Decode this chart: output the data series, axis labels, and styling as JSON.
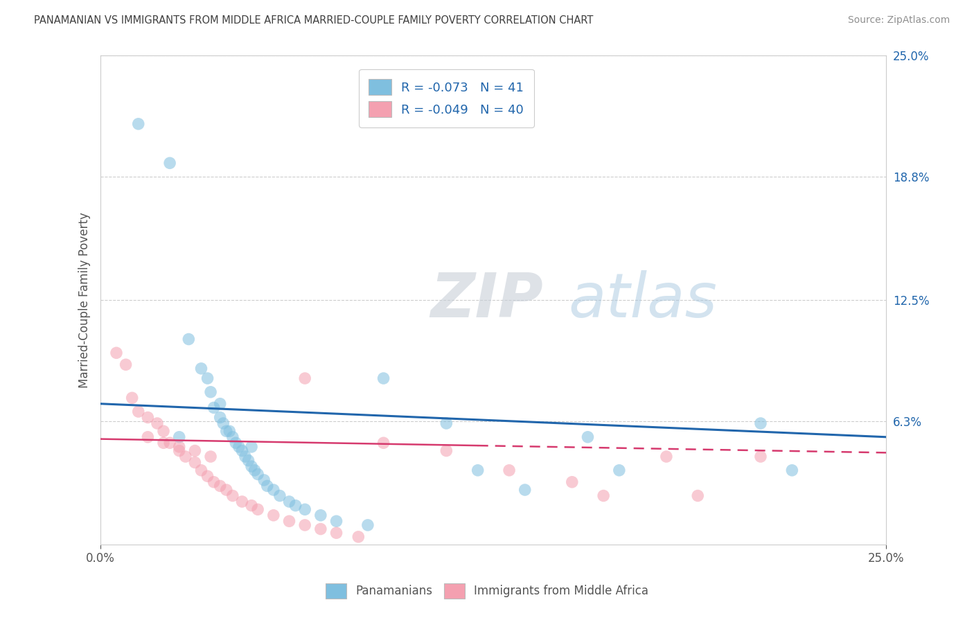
{
  "title": "PANAMANIAN VS IMMIGRANTS FROM MIDDLE AFRICA MARRIED-COUPLE FAMILY POVERTY CORRELATION CHART",
  "source": "Source: ZipAtlas.com",
  "ylabel": "Married-Couple Family Poverty",
  "xlim": [
    0.0,
    0.25
  ],
  "ylim": [
    0.0,
    0.25
  ],
  "xtick_positions": [
    0.0,
    0.25
  ],
  "xtick_labels": [
    "0.0%",
    "25.0%"
  ],
  "ytick_values_right": [
    0.063,
    0.125,
    0.188,
    0.25
  ],
  "ytick_labels_right": [
    "6.3%",
    "12.5%",
    "18.8%",
    "25.0%"
  ],
  "blue_R": -0.073,
  "blue_N": 41,
  "pink_R": -0.049,
  "pink_N": 40,
  "blue_color": "#7fbfdf",
  "pink_color": "#f4a0b0",
  "blue_line_color": "#2166ac",
  "pink_line_color": "#d63a6e",
  "title_color": "#404040",
  "source_color": "#909090",
  "legend_text_color": "#2166ac",
  "background_color": "#ffffff",
  "watermark_zip": "ZIP",
  "watermark_atlas": "atlas",
  "blue_scatter_x": [
    0.012,
    0.022,
    0.028,
    0.032,
    0.034,
    0.035,
    0.036,
    0.038,
    0.039,
    0.04,
    0.041,
    0.042,
    0.043,
    0.044,
    0.045,
    0.046,
    0.047,
    0.048,
    0.049,
    0.05,
    0.052,
    0.053,
    0.055,
    0.057,
    0.06,
    0.062,
    0.065,
    0.07,
    0.075,
    0.085,
    0.09,
    0.11,
    0.12,
    0.135,
    0.155,
    0.165,
    0.21,
    0.22,
    0.038,
    0.048,
    0.025
  ],
  "blue_scatter_y": [
    0.215,
    0.195,
    0.105,
    0.09,
    0.085,
    0.078,
    0.07,
    0.065,
    0.062,
    0.058,
    0.058,
    0.055,
    0.052,
    0.05,
    0.048,
    0.045,
    0.043,
    0.04,
    0.038,
    0.036,
    0.033,
    0.03,
    0.028,
    0.025,
    0.022,
    0.02,
    0.018,
    0.015,
    0.012,
    0.01,
    0.085,
    0.062,
    0.038,
    0.028,
    0.055,
    0.038,
    0.062,
    0.038,
    0.072,
    0.05,
    0.055
  ],
  "pink_scatter_x": [
    0.005,
    0.008,
    0.01,
    0.012,
    0.015,
    0.018,
    0.02,
    0.022,
    0.025,
    0.027,
    0.03,
    0.032,
    0.034,
    0.036,
    0.038,
    0.04,
    0.042,
    0.045,
    0.048,
    0.05,
    0.055,
    0.06,
    0.065,
    0.07,
    0.075,
    0.082,
    0.09,
    0.11,
    0.13,
    0.15,
    0.16,
    0.18,
    0.19,
    0.21,
    0.015,
    0.02,
    0.025,
    0.03,
    0.035,
    0.065
  ],
  "pink_scatter_y": [
    0.098,
    0.092,
    0.075,
    0.068,
    0.065,
    0.062,
    0.058,
    0.052,
    0.048,
    0.045,
    0.042,
    0.038,
    0.035,
    0.032,
    0.03,
    0.028,
    0.025,
    0.022,
    0.02,
    0.018,
    0.015,
    0.012,
    0.01,
    0.008,
    0.006,
    0.004,
    0.052,
    0.048,
    0.038,
    0.032,
    0.025,
    0.045,
    0.025,
    0.045,
    0.055,
    0.052,
    0.05,
    0.048,
    0.045,
    0.085
  ]
}
